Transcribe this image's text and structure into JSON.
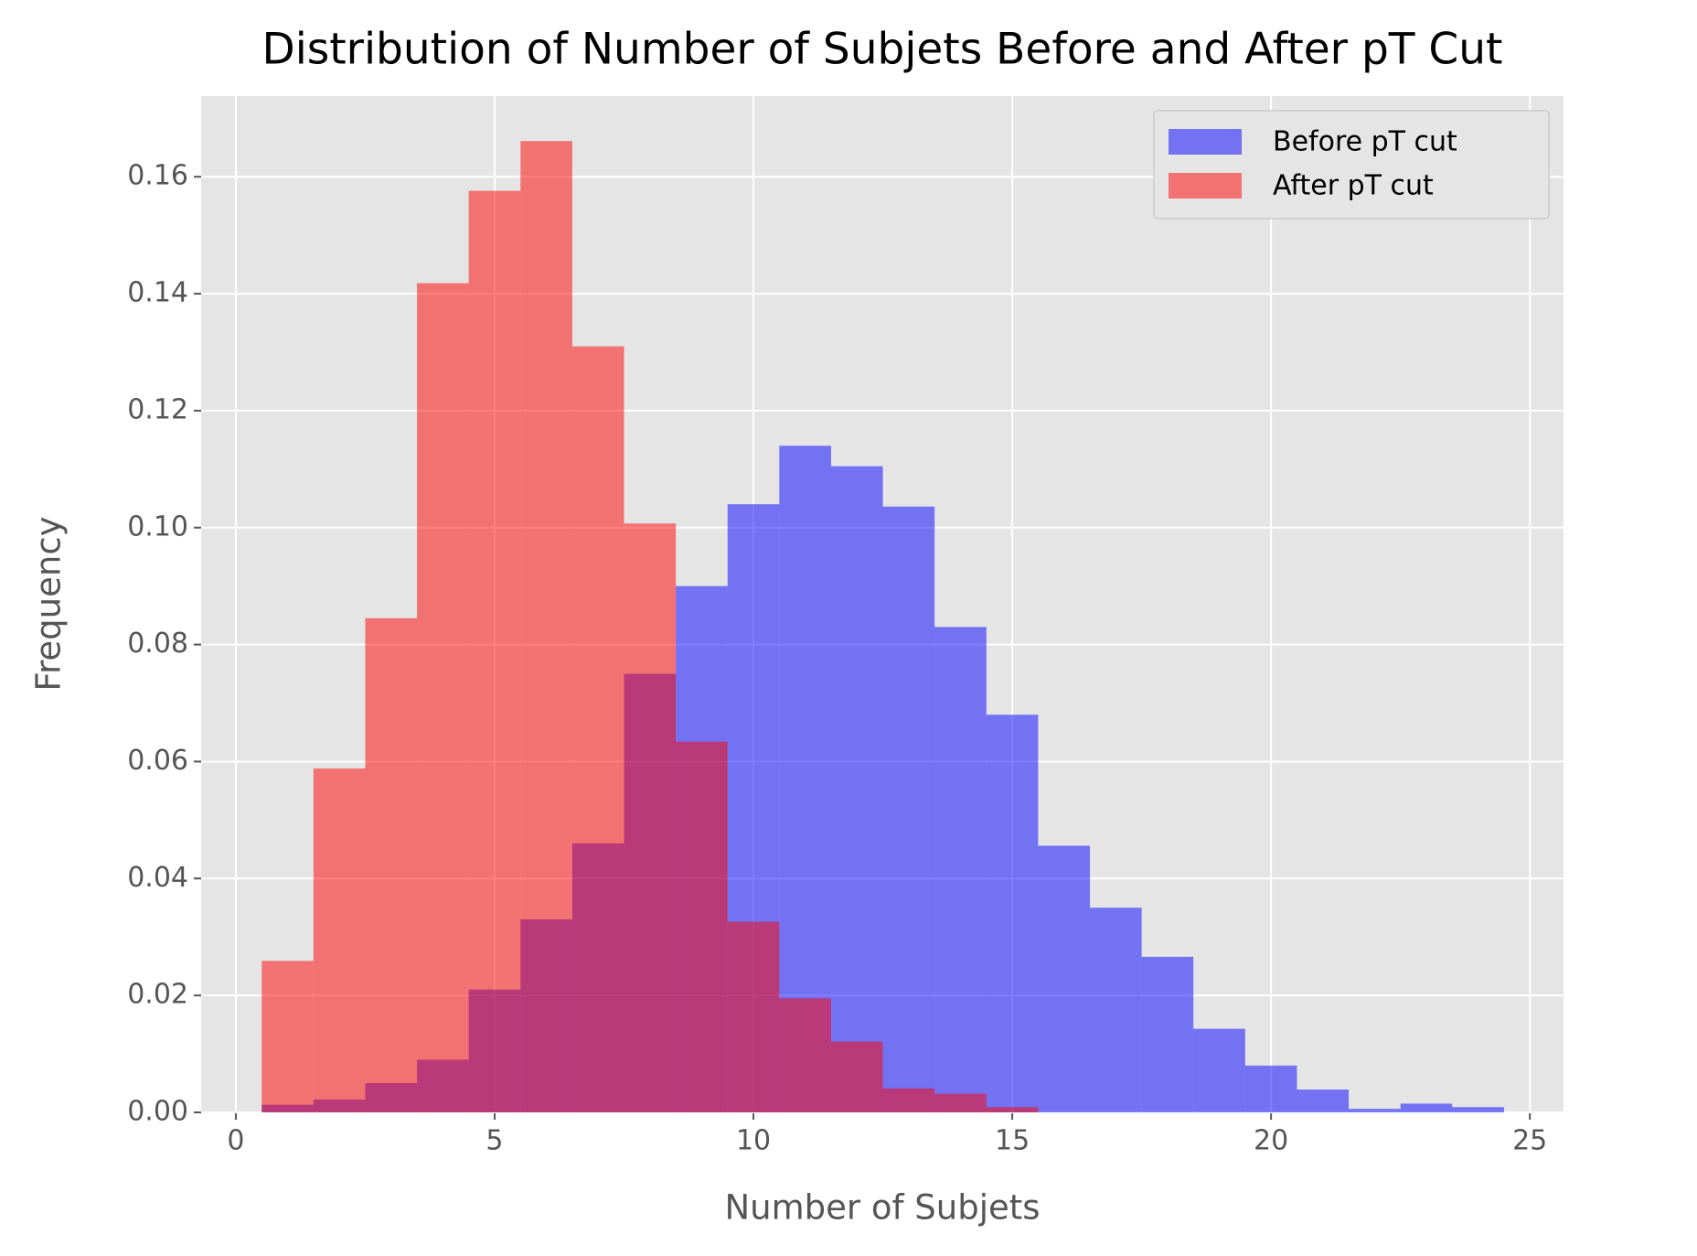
{
  "chart_data": {
    "type": "histogram",
    "title": "Distribution of Number of Subjets Before and After pT Cut",
    "x_label": "Number of Subjets",
    "y_label": "Frequency",
    "bins": [
      0.5,
      1.5,
      2.5,
      3.5,
      4.5,
      5.5,
      6.5,
      7.5,
      8.5,
      9.5,
      10.5,
      11.5,
      12.5,
      13.5,
      14.5,
      15.5,
      16.5,
      17.5,
      18.5,
      19.5,
      20.5,
      21.5,
      22.5,
      23.5,
      24.5
    ],
    "series": [
      {
        "name": "Before pT cut",
        "color": "#0000ff",
        "opacity": 0.5,
        "values": [
          0.0013,
          0.0022,
          0.005,
          0.009,
          0.021,
          0.033,
          0.046,
          0.075,
          0.09,
          0.104,
          0.114,
          0.1105,
          0.1036,
          0.083,
          0.068,
          0.0456,
          0.035,
          0.0266,
          0.0143,
          0.008,
          0.0039,
          0.0006,
          0.0015,
          0.0009
        ]
      },
      {
        "name": "After pT cut",
        "color": "#ff0000",
        "opacity": 0.5,
        "values": [
          0.0259,
          0.0588,
          0.0845,
          0.1418,
          0.1576,
          0.1661,
          0.131,
          0.1007,
          0.0634,
          0.0326,
          0.0195,
          0.0121,
          0.0041,
          0.0032,
          0.0009,
          0,
          0,
          0,
          0,
          0,
          0,
          0,
          0,
          0
        ]
      }
    ],
    "xlim": [
      -0.67,
      25.65
    ],
    "ylim": [
      0,
      0.1738
    ],
    "xticks": [
      0,
      5,
      10,
      15,
      20,
      25
    ],
    "yticks": [
      {
        "value": 0,
        "label": "0.00"
      },
      {
        "value": 0.02,
        "label": "0.02"
      },
      {
        "value": 0.04,
        "label": "0.04"
      },
      {
        "value": 0.06,
        "label": "0.06"
      },
      {
        "value": 0.08,
        "label": "0.08"
      },
      {
        "value": 0.1,
        "label": "0.10"
      },
      {
        "value": 0.12,
        "label": "0.12"
      },
      {
        "value": 0.14,
        "label": "0.14"
      },
      {
        "value": 0.16,
        "label": "0.16"
      }
    ],
    "grid": true,
    "legend": "upper right"
  }
}
